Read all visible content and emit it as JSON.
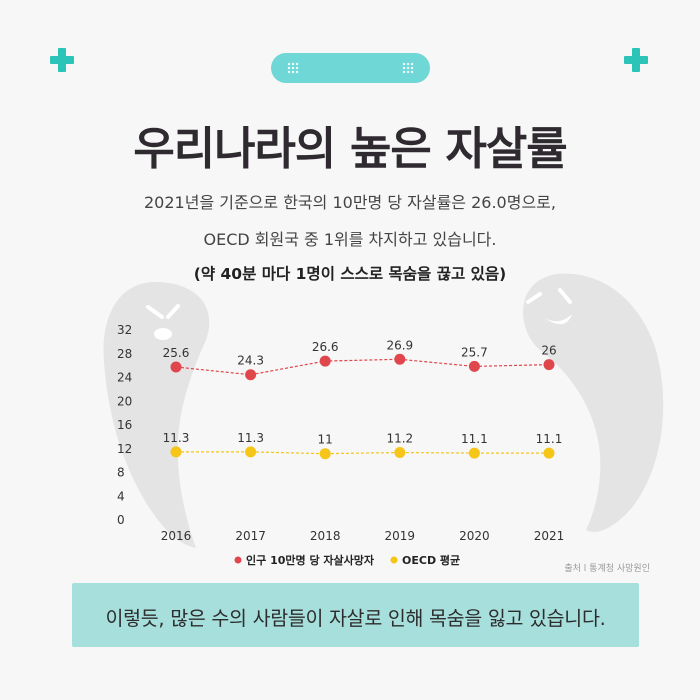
{
  "header": {
    "title": "우리나라의 높은 자살률",
    "subtitle_line1": "2021년을 기준으로 한국의 10만명 당 자살률은 26.0명으로,",
    "subtitle_line2": "OECD 회원국 중 1위를 차지하고 있습니다.",
    "subtitle_line3": "(약 40분 마다 1명이 스스로 목숨을 끊고 있음)"
  },
  "colors": {
    "accent": "#2cc3b8",
    "pill": "#6fd8d6",
    "banner": "#a7dfdd",
    "korea_series": "#e0474c",
    "oecd_series": "#f5c518",
    "ghost": "#e4e4e4"
  },
  "chart_data": {
    "type": "line",
    "x": [
      "2016",
      "2017",
      "2018",
      "2019",
      "2020",
      "2021"
    ],
    "ylim": [
      0,
      32
    ],
    "yticks": [
      "0",
      "4",
      "8",
      "12",
      "16",
      "20",
      "24",
      "28",
      "32"
    ],
    "grid": false,
    "legend_position": "bottom",
    "series": [
      {
        "name": "인구 10만명 당 자살사망자",
        "values": [
          25.6,
          24.3,
          26.6,
          26.9,
          25.7,
          26
        ],
        "labels": [
          "25.6",
          "24.3",
          "26.6",
          "26.9",
          "25.7",
          "26"
        ],
        "color": "#e0474c"
      },
      {
        "name": "OECD 평균",
        "values": [
          11.3,
          11.3,
          11,
          11.2,
          11.1,
          11.1
        ],
        "labels": [
          "11.3",
          "11.3",
          "11",
          "11.2",
          "11.1",
          "11.1"
        ],
        "color": "#f5c518"
      }
    ]
  },
  "source": "출처 l 통계청 사망원인",
  "footer": {
    "message": "이렇듯, 많은 수의 사람들이 자살로 인해 목숨을 잃고 있습니다."
  }
}
